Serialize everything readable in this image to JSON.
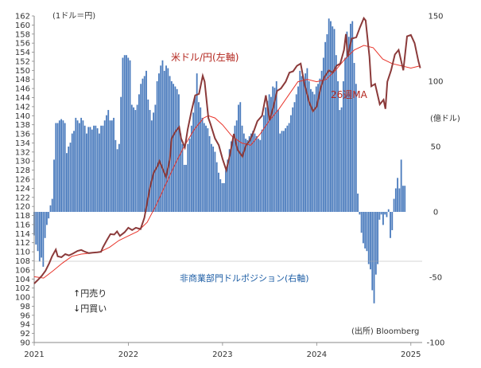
{
  "chart_data": {
    "type": "bar+line",
    "left_axis": {
      "unit_label": "(1ドル＝円)",
      "min": 90,
      "max": 162,
      "step": 2
    },
    "right_axis": {
      "unit_label": "(億ドル)",
      "min": -100,
      "max": 150,
      "step": 50,
      "tick_labels": [
        "-100",
        "-50",
        "0",
        "50",
        "100",
        "150"
      ]
    },
    "x_axis": {
      "start": 2021.0,
      "end": 2025.12,
      "tick_labels": [
        "2021",
        "2022",
        "2023",
        "2024",
        "2025"
      ],
      "tick_positions": [
        2021,
        2022,
        2023,
        2024,
        2025
      ]
    },
    "series": [
      {
        "name": "米ドル/円(左軸)",
        "kind": "line",
        "color": "#8b3a3a",
        "points": [
          [
            2021.0,
            103.0
          ],
          [
            2021.04,
            103.8
          ],
          [
            2021.08,
            104.7
          ],
          [
            2021.12,
            105.8
          ],
          [
            2021.16,
            107.5
          ],
          [
            2021.19,
            109.0
          ],
          [
            2021.23,
            110.5
          ],
          [
            2021.25,
            109.0
          ],
          [
            2021.29,
            108.8
          ],
          [
            2021.33,
            109.5
          ],
          [
            2021.37,
            109.2
          ],
          [
            2021.41,
            109.6
          ],
          [
            2021.46,
            110.2
          ],
          [
            2021.5,
            110.4
          ],
          [
            2021.54,
            110.0
          ],
          [
            2021.58,
            109.7
          ],
          [
            2021.62,
            109.8
          ],
          [
            2021.67,
            109.9
          ],
          [
            2021.71,
            110.0
          ],
          [
            2021.73,
            111.0
          ],
          [
            2021.77,
            112.5
          ],
          [
            2021.81,
            113.9
          ],
          [
            2021.85,
            113.8
          ],
          [
            2021.88,
            114.5
          ],
          [
            2021.91,
            113.5
          ],
          [
            2021.96,
            114.3
          ],
          [
            2022.0,
            115.3
          ],
          [
            2022.04,
            114.8
          ],
          [
            2022.08,
            115.3
          ],
          [
            2022.13,
            115.0
          ],
          [
            2022.17,
            117.5
          ],
          [
            2022.21,
            122.0
          ],
          [
            2022.23,
            124.2
          ],
          [
            2022.27,
            127.5
          ],
          [
            2022.31,
            128.9
          ],
          [
            2022.33,
            130.0
          ],
          [
            2022.37,
            128.0
          ],
          [
            2022.4,
            126.5
          ],
          [
            2022.44,
            130.3
          ],
          [
            2022.46,
            135.0
          ],
          [
            2022.5,
            136.5
          ],
          [
            2022.54,
            137.5
          ],
          [
            2022.56,
            135.0
          ],
          [
            2022.6,
            133.0
          ],
          [
            2022.63,
            137.0
          ],
          [
            2022.67,
            141.0
          ],
          [
            2022.71,
            144.5
          ],
          [
            2022.75,
            144.8
          ],
          [
            2022.79,
            148.8
          ],
          [
            2022.81,
            147.5
          ],
          [
            2022.85,
            139.5
          ],
          [
            2022.87,
            138.3
          ],
          [
            2022.92,
            135.0
          ],
          [
            2022.96,
            133.5
          ],
          [
            2023.0,
            130.5
          ],
          [
            2023.04,
            128.0
          ],
          [
            2023.08,
            131.5
          ],
          [
            2023.12,
            136.0
          ],
          [
            2023.16,
            132.5
          ],
          [
            2023.21,
            131.0
          ],
          [
            2023.25,
            133.5
          ],
          [
            2023.29,
            134.5
          ],
          [
            2023.33,
            136.5
          ],
          [
            2023.37,
            138.8
          ],
          [
            2023.42,
            140.0
          ],
          [
            2023.46,
            144.5
          ],
          [
            2023.5,
            139.0
          ],
          [
            2023.54,
            142.0
          ],
          [
            2023.58,
            145.5
          ],
          [
            2023.62,
            146.0
          ],
          [
            2023.67,
            147.5
          ],
          [
            2023.71,
            149.5
          ],
          [
            2023.75,
            149.8
          ],
          [
            2023.79,
            151.0
          ],
          [
            2023.83,
            151.5
          ],
          [
            2023.87,
            147.0
          ],
          [
            2023.92,
            143.0
          ],
          [
            2023.96,
            141.0
          ],
          [
            2024.0,
            142.0
          ],
          [
            2024.04,
            146.0
          ],
          [
            2024.08,
            148.5
          ],
          [
            2024.13,
            150.0
          ],
          [
            2024.17,
            149.5
          ],
          [
            2024.21,
            151.0
          ],
          [
            2024.25,
            151.5
          ],
          [
            2024.29,
            154.5
          ],
          [
            2024.31,
            158.0
          ],
          [
            2024.33,
            153.0
          ],
          [
            2024.37,
            157.0
          ],
          [
            2024.42,
            157.3
          ],
          [
            2024.46,
            159.5
          ],
          [
            2024.5,
            161.5
          ],
          [
            2024.52,
            161.0
          ],
          [
            2024.56,
            153.0
          ],
          [
            2024.58,
            146.5
          ],
          [
            2024.62,
            147.0
          ],
          [
            2024.67,
            142.5
          ],
          [
            2024.71,
            143.5
          ],
          [
            2024.73,
            141.5
          ],
          [
            2024.75,
            147.5
          ],
          [
            2024.79,
            150.0
          ],
          [
            2024.83,
            153.5
          ],
          [
            2024.87,
            154.5
          ],
          [
            2024.92,
            150.0
          ],
          [
            2024.96,
            157.5
          ],
          [
            2025.0,
            157.8
          ],
          [
            2025.04,
            156.0
          ],
          [
            2025.08,
            152.0
          ],
          [
            2025.1,
            150.5
          ]
        ]
      },
      {
        "name": "26週MA",
        "kind": "line",
        "color": "#e8342a",
        "points": [
          [
            2021.0,
            104.5
          ],
          [
            2021.1,
            104.2
          ],
          [
            2021.2,
            105.8
          ],
          [
            2021.3,
            107.5
          ],
          [
            2021.4,
            109.0
          ],
          [
            2021.5,
            109.5
          ],
          [
            2021.6,
            109.7
          ],
          [
            2021.7,
            110.0
          ],
          [
            2021.8,
            111.0
          ],
          [
            2021.9,
            112.5
          ],
          [
            2022.0,
            113.5
          ],
          [
            2022.1,
            114.5
          ],
          [
            2022.2,
            116.5
          ],
          [
            2022.3,
            120.5
          ],
          [
            2022.4,
            125.0
          ],
          [
            2022.5,
            129.5
          ],
          [
            2022.6,
            133.5
          ],
          [
            2022.7,
            137.0
          ],
          [
            2022.8,
            139.5
          ],
          [
            2022.85,
            140.0
          ],
          [
            2022.92,
            139.5
          ],
          [
            2023.0,
            138.0
          ],
          [
            2023.1,
            135.5
          ],
          [
            2023.2,
            134.0
          ],
          [
            2023.3,
            133.5
          ],
          [
            2023.4,
            136.0
          ],
          [
            2023.5,
            139.0
          ],
          [
            2023.6,
            141.5
          ],
          [
            2023.7,
            144.5
          ],
          [
            2023.8,
            147.5
          ],
          [
            2023.9,
            148.0
          ],
          [
            2024.0,
            147.5
          ],
          [
            2024.1,
            148.0
          ],
          [
            2024.2,
            150.0
          ],
          [
            2024.3,
            152.5
          ],
          [
            2024.4,
            154.5
          ],
          [
            2024.5,
            155.5
          ],
          [
            2024.6,
            155.0
          ],
          [
            2024.7,
            152.5
          ],
          [
            2024.8,
            151.5
          ],
          [
            2024.9,
            151.0
          ],
          [
            2025.0,
            150.5
          ],
          [
            2025.1,
            151.0
          ]
        ]
      },
      {
        "name": "非商業部門ドルポジション(右軸)",
        "kind": "bar",
        "color": "#4a7bbd",
        "start": 2021.0,
        "week": 0.0192,
        "values": [
          -18,
          -25,
          -30,
          -38,
          -35,
          -42,
          -20,
          -10,
          -5,
          5,
          10,
          40,
          68,
          68,
          70,
          71,
          70,
          68,
          45,
          50,
          53,
          60,
          62,
          72,
          70,
          68,
          72,
          70,
          66,
          60,
          65,
          65,
          63,
          66,
          66,
          64,
          60,
          66,
          66,
          70,
          74,
          78,
          70,
          70,
          72,
          55,
          48,
          52,
          88,
          118,
          120,
          120,
          118,
          116,
          82,
          80,
          78,
          82,
          90,
          98,
          102,
          104,
          108,
          86,
          78,
          70,
          76,
          82,
          100,
          106,
          112,
          116,
          108,
          112,
          110,
          104,
          100,
          98,
          96,
          94,
          90,
          60,
          52,
          36,
          36,
          52,
          56,
          66,
          76,
          88,
          106,
          84,
          80,
          72,
          68,
          66,
          64,
          58,
          52,
          50,
          46,
          38,
          30,
          25,
          22,
          22,
          32,
          40,
          48,
          54,
          58,
          66,
          70,
          82,
          84,
          66,
          60,
          56,
          55,
          58,
          60,
          62,
          60,
          58,
          56,
          55,
          63,
          74,
          80,
          85,
          90,
          88,
          96,
          95,
          100,
          78,
          60,
          62,
          62,
          64,
          66,
          68,
          74,
          80,
          84,
          90,
          96,
          108,
          104,
          100,
          106,
          110,
          100,
          94,
          92,
          90,
          96,
          98,
          102,
          108,
          118,
          130,
          136,
          148,
          146,
          142,
          140,
          120,
          100,
          78,
          80,
          100,
          118,
          138,
          134,
          144,
          146,
          114,
          98,
          14,
          -2,
          -16,
          -24,
          -28,
          -30,
          -40,
          -44,
          -60,
          -70,
          -48,
          -40,
          -6,
          -2,
          -10,
          -2,
          -4,
          2,
          -20,
          -14,
          10,
          18,
          26,
          18,
          40,
          20,
          20
        ]
      }
    ],
    "annotations": {
      "usd_jpy_label": "米ドル/円(左軸)",
      "ma_label": "26週MA",
      "position_label": "非商業部門ドルポジション(右軸)",
      "sell_yen": "↑円売り",
      "buy_yen": "↓円買い",
      "source": "(出所) Bloomberg"
    },
    "colors": {
      "bars": "#4a7bbd",
      "usdjpy": "#8b3a3a",
      "ma": "#e8342a",
      "axis_text": "#333333",
      "position_label": "#1f5fa6"
    }
  }
}
